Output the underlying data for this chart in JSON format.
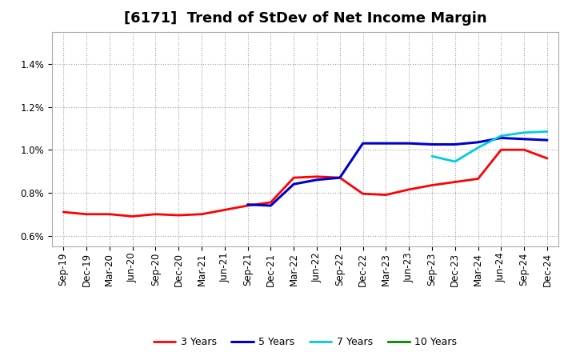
{
  "title": "[6171]  Trend of StDev of Net Income Margin",
  "xlabels": [
    "Sep-19",
    "Dec-19",
    "Mar-20",
    "Jun-20",
    "Sep-20",
    "Dec-20",
    "Mar-21",
    "Jun-21",
    "Sep-21",
    "Dec-21",
    "Mar-22",
    "Jun-22",
    "Sep-22",
    "Dec-22",
    "Mar-23",
    "Jun-23",
    "Sep-23",
    "Dec-23",
    "Mar-24",
    "Jun-24",
    "Sep-24",
    "Dec-24"
  ],
  "series": {
    "3 Years": {
      "color": "#FF0000",
      "linewidth": 2.0,
      "values": [
        0.0071,
        0.007,
        0.007,
        0.0069,
        0.007,
        0.00695,
        0.007,
        0.0072,
        0.0074,
        0.00755,
        0.0087,
        0.00875,
        0.0087,
        0.00795,
        0.0079,
        0.00815,
        0.00835,
        0.0085,
        0.00865,
        0.01,
        0.01,
        0.0096
      ]
    },
    "5 Years": {
      "color": "#0000CC",
      "linewidth": 2.2,
      "values": [
        null,
        null,
        null,
        null,
        null,
        null,
        null,
        null,
        0.00745,
        0.0074,
        0.0084,
        0.0086,
        0.0087,
        0.0103,
        0.0103,
        0.0103,
        0.01025,
        0.01025,
        0.01035,
        0.01055,
        0.0105,
        0.01045
      ]
    },
    "7 Years": {
      "color": "#00CCDD",
      "linewidth": 2.0,
      "values": [
        null,
        null,
        null,
        null,
        null,
        null,
        null,
        null,
        null,
        null,
        null,
        null,
        null,
        null,
        null,
        null,
        0.0097,
        0.00945,
        0.0101,
        0.01065,
        0.0108,
        0.01085
      ]
    },
    "10 Years": {
      "color": "#008800",
      "linewidth": 2.0,
      "values": [
        null,
        null,
        null,
        null,
        null,
        null,
        null,
        null,
        null,
        null,
        null,
        null,
        null,
        null,
        null,
        null,
        null,
        null,
        null,
        null,
        null,
        null
      ]
    }
  },
  "ylim": [
    0.0055,
    0.0155
  ],
  "yticks": [
    0.006,
    0.008,
    0.01,
    0.012,
    0.014
  ],
  "background_color": "#FFFFFF",
  "plot_bg_color": "#FFFFFF",
  "grid_color": "#888888",
  "title_fontsize": 13,
  "title_fontweight": "bold",
  "tick_fontsize": 8.5,
  "legend_fontsize": 9
}
